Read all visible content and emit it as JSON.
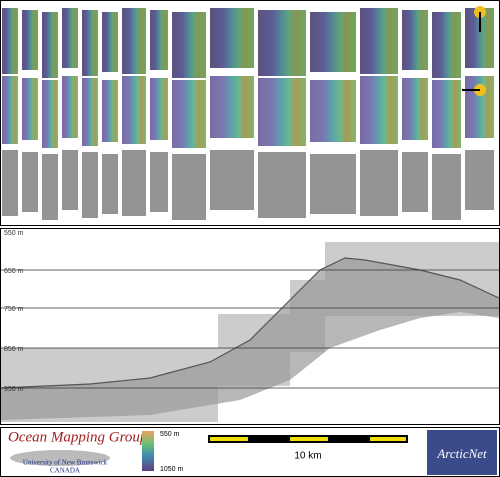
{
  "profile": {
    "depth_labels": [
      "550 m",
      "650 m",
      "750 m",
      "850 m",
      "950 m"
    ]
  },
  "footer": {
    "group": "Ocean Mapping Group",
    "university": "University of New Brunswick",
    "country": "CANADA",
    "colorbar_top": "550 m",
    "colorbar_bottom": "1050 m",
    "scale": "10 km",
    "partner": "ArcticNet"
  }
}
